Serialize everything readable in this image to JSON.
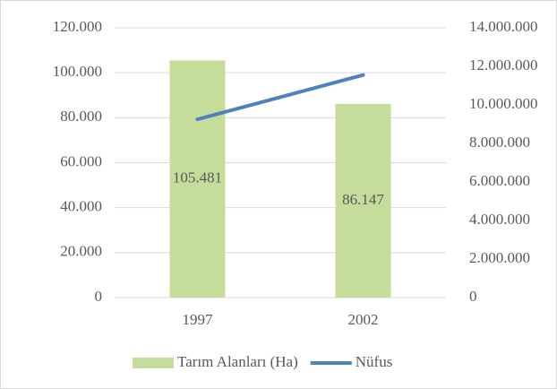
{
  "chart_data": {
    "type": "bar",
    "categories": [
      "1997",
      "2002"
    ],
    "series": [
      {
        "name": "Tarım Alanları (Ha)",
        "type": "bar",
        "color": "#c5dc9a",
        "values": [
          105481,
          86147
        ],
        "value_labels": [
          "105.481",
          "86.147"
        ]
      },
      {
        "name": "Nüfus",
        "type": "line",
        "axis": "y2",
        "color": "#4f81bd",
        "values": [
          9250000,
          11550000
        ]
      }
    ],
    "ylim": [
      0,
      120000
    ],
    "yticks": [
      0,
      {
        "value": 20000,
        "label": "20.000"
      },
      {
        "value": 40000,
        "label": "40.000"
      },
      {
        "value": 60000,
        "label": "60.000"
      },
      {
        "value": 80000,
        "label": "80.000"
      },
      {
        "value": 100000,
        "label": "100.000"
      },
      {
        "value": 120000,
        "label": "120.000"
      }
    ],
    "y2lim": [
      0,
      14000000
    ],
    "y2ticks": [
      0,
      {
        "value": 2000000,
        "label": "2.000.000"
      },
      {
        "value": 4000000,
        "label": "4.000.000"
      },
      {
        "value": 6000000,
        "label": "6.000.000"
      },
      {
        "value": 8000000,
        "label": "8.000.000"
      },
      {
        "value": 10000000,
        "label": "10.000.000"
      },
      {
        "value": 12000000,
        "label": "12.000.000"
      },
      {
        "value": 14000000,
        "label": "14.000.000"
      }
    ],
    "grid": true,
    "legend": "bottom"
  }
}
